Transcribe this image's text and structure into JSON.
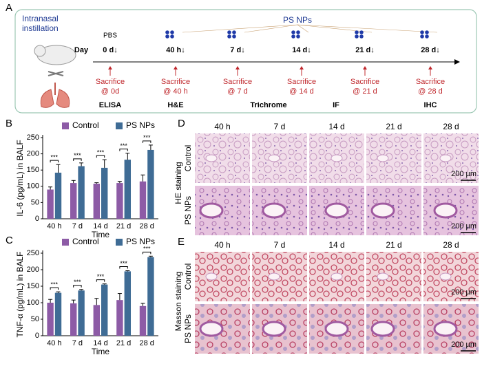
{
  "panel_labels": {
    "a": "A",
    "b": "B",
    "c": "C",
    "d": "D",
    "e": "E"
  },
  "panel_a": {
    "intranasal": [
      "Intranasal",
      "instillation"
    ],
    "ps_nps": "PS NPs",
    "pbs": "PBS",
    "day": "Day",
    "timepoints": [
      "0 d↓",
      "40 h↓",
      "7 d↓",
      "14 d↓",
      "21 d↓",
      "28 d↓"
    ],
    "sacrifice": [
      [
        "Sacrifice",
        "@ 0d"
      ],
      [
        "Sacrifice",
        "@ 40 h"
      ],
      [
        "Sacrifice",
        "@ 7 d"
      ],
      [
        "Sacrifice",
        "@ 14 d"
      ],
      [
        "Sacrifice",
        "@ 21 d"
      ],
      [
        "Sacrifice",
        "@ 28 d"
      ]
    ],
    "assays": [
      "ELISA",
      "H&E",
      "Trichrome",
      "IF",
      "IHC"
    ]
  },
  "chart_data": [
    {
      "type": "bar",
      "y_label": "IL-6 (pg/mL) in BALF",
      "x_label": "Time",
      "categories": [
        "40 h",
        "7 d",
        "14 d",
        "21 d",
        "28 d"
      ],
      "series": [
        {
          "name": "Control",
          "color": "#8d5ba6",
          "values": [
            90,
            110,
            108,
            110,
            115
          ],
          "errors": [
            8,
            8,
            3,
            5,
            20
          ]
        },
        {
          "name": "PS NPs",
          "color": "#3f6c95",
          "values": [
            142,
            162,
            157,
            182,
            212
          ],
          "errors": [
            25,
            10,
            25,
            20,
            15
          ]
        }
      ],
      "significance": [
        "***",
        "***",
        "***",
        "***",
        "***"
      ],
      "ylim": [
        0,
        250
      ],
      "yticks": [
        0,
        50,
        100,
        150,
        200,
        250
      ],
      "legend": "top"
    },
    {
      "type": "bar",
      "y_label": "TNF-α (pg/mL) in BALF",
      "x_label": "Time",
      "categories": [
        "40 h",
        "7 d",
        "14 d",
        "21 d",
        "28 d"
      ],
      "series": [
        {
          "name": "Control",
          "color": "#8d5ba6",
          "values": [
            100,
            98,
            93,
            108,
            90
          ],
          "errors": [
            10,
            10,
            20,
            20,
            8
          ]
        },
        {
          "name": "PS NPs",
          "color": "#3f6c95",
          "values": [
            130,
            137,
            155,
            195,
            238
          ],
          "errors": [
            3,
            3,
            2,
            2,
            3
          ]
        }
      ],
      "significance": [
        "***",
        "***",
        "***",
        "***",
        "***"
      ],
      "ylim": [
        0,
        250
      ],
      "yticks": [
        0,
        50,
        100,
        150,
        200,
        250
      ],
      "legend": "top"
    }
  ],
  "panel_d": {
    "columns": [
      "40 h",
      "7 d",
      "14 d",
      "21 d",
      "28 d"
    ],
    "staining": "HE staining",
    "rows": [
      "Control",
      "PS NPs"
    ],
    "scale_bars": [
      "200 µm",
      "200 µm"
    ]
  },
  "panel_e": {
    "columns": [
      "40 h",
      "7 d",
      "14 d",
      "21 d",
      "28 d"
    ],
    "staining": "Masson  staining",
    "rows": [
      "Control",
      "PS NPs"
    ],
    "scale_bars": [
      "200 µm",
      "200 µm"
    ]
  }
}
